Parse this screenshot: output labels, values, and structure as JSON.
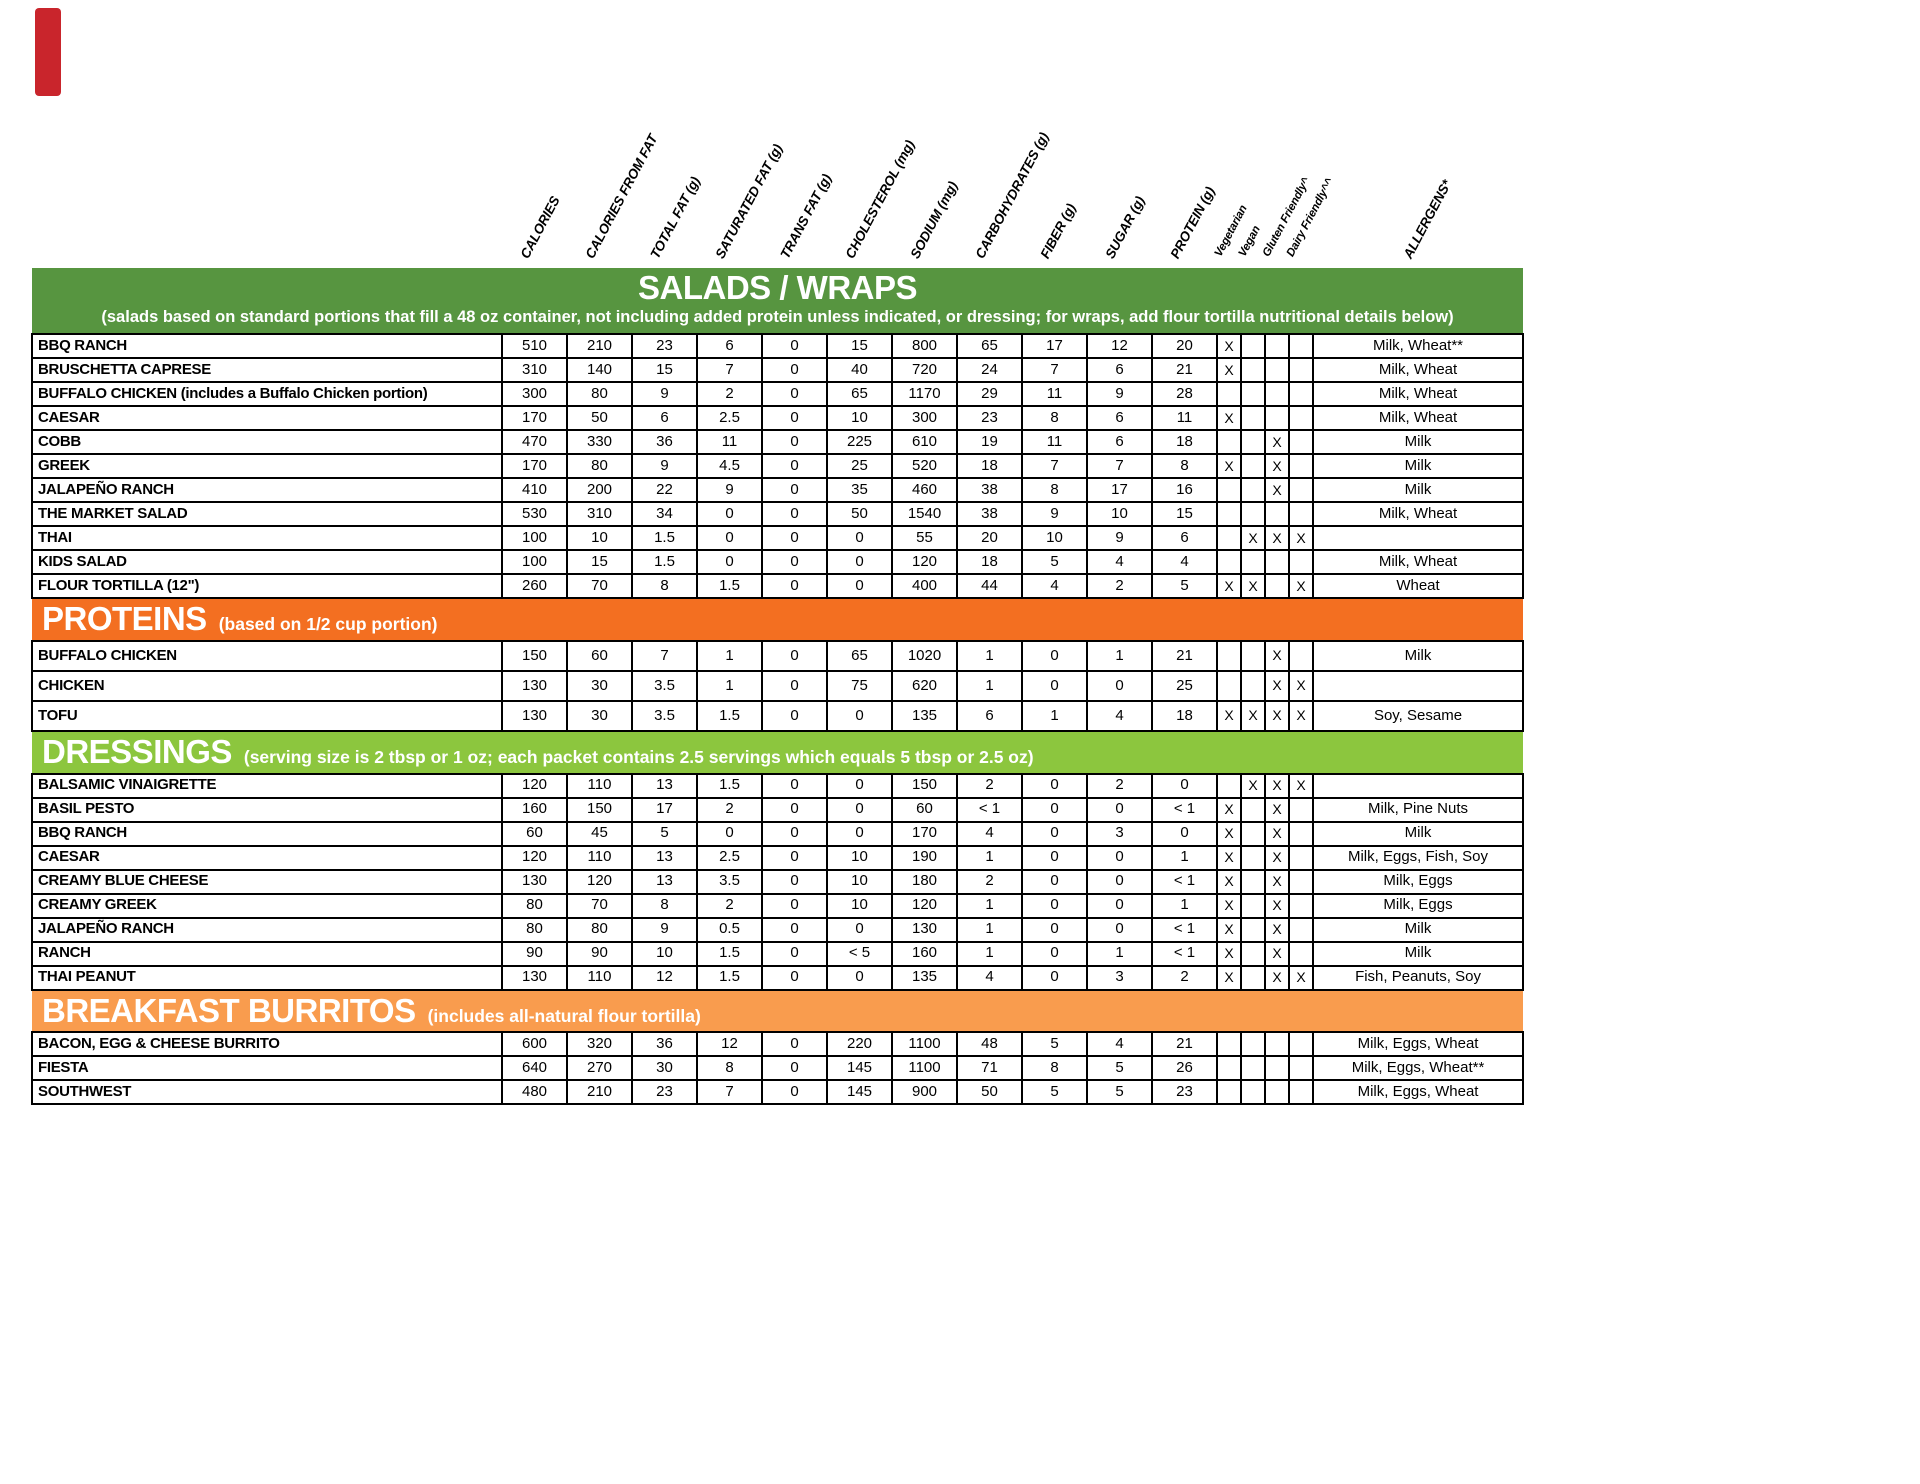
{
  "marker": {
    "color": "#c9252c"
  },
  "table": {
    "columns": [
      "CALORIES",
      "CALORIES FROM FAT",
      "TOTAL FAT (g)",
      "SATURATED FAT (g)",
      "TRANS FAT (g)",
      "CHOLESTEROL (mg)",
      "SODIUM (mg)",
      "CARBOHYDRATES (g)",
      "FIBER (g)",
      "SUGAR (g)",
      "PROTEIN (g)",
      "Vegetarian",
      "Vegan",
      "Gluten Friendly^",
      "Dairy Friendly^^",
      "ALLERGENS*"
    ],
    "sections": [
      {
        "title": "SALADS / WRAPS",
        "subtitle": "(salads based on standard portions that fill a 48 oz container, not including added protein unless indicated, or dressing; for wraps, add flour tortilla nutritional details below)",
        "color": "#579540",
        "layout": "stacked",
        "row_class": "",
        "rows": [
          {
            "name": "BBQ RANCH",
            "values": [
              "510",
              "210",
              "23",
              "6",
              "0",
              "15",
              "800",
              "65",
              "17",
              "12",
              "20"
            ],
            "flags": [
              "X",
              "",
              "",
              ""
            ],
            "allergens": "Milk, Wheat**"
          },
          {
            "name": "BRUSCHETTA CAPRESE",
            "values": [
              "310",
              "140",
              "15",
              "7",
              "0",
              "40",
              "720",
              "24",
              "7",
              "6",
              "21"
            ],
            "flags": [
              "X",
              "",
              "",
              ""
            ],
            "allergens": "Milk, Wheat"
          },
          {
            "name": "BUFFALO CHICKEN (includes a Buffalo Chicken portion)",
            "values": [
              "300",
              "80",
              "9",
              "2",
              "0",
              "65",
              "1170",
              "29",
              "11",
              "9",
              "28"
            ],
            "flags": [
              "",
              "",
              "",
              ""
            ],
            "allergens": "Milk, Wheat"
          },
          {
            "name": "CAESAR",
            "values": [
              "170",
              "50",
              "6",
              "2.5",
              "0",
              "10",
              "300",
              "23",
              "8",
              "6",
              "11"
            ],
            "flags": [
              "X",
              "",
              "",
              ""
            ],
            "allergens": "Milk, Wheat"
          },
          {
            "name": "COBB",
            "values": [
              "470",
              "330",
              "36",
              "11",
              "0",
              "225",
              "610",
              "19",
              "11",
              "6",
              "18"
            ],
            "flags": [
              "",
              "",
              "X",
              ""
            ],
            "allergens": "Milk"
          },
          {
            "name": "GREEK",
            "values": [
              "170",
              "80",
              "9",
              "4.5",
              "0",
              "25",
              "520",
              "18",
              "7",
              "7",
              "8"
            ],
            "flags": [
              "X",
              "",
              "X",
              ""
            ],
            "allergens": "Milk"
          },
          {
            "name": "JALAPEÑO RANCH",
            "values": [
              "410",
              "200",
              "22",
              "9",
              "0",
              "35",
              "460",
              "38",
              "8",
              "17",
              "16"
            ],
            "flags": [
              "",
              "",
              "X",
              ""
            ],
            "allergens": "Milk"
          },
          {
            "name": "THE MARKET SALAD",
            "values": [
              "530",
              "310",
              "34",
              "0",
              "0",
              "50",
              "1540",
              "38",
              "9",
              "10",
              "15"
            ],
            "flags": [
              "",
              "",
              "",
              ""
            ],
            "allergens": "Milk, Wheat"
          },
          {
            "name": "THAI",
            "values": [
              "100",
              "10",
              "1.5",
              "0",
              "0",
              "0",
              "55",
              "20",
              "10",
              "9",
              "6"
            ],
            "flags": [
              "",
              "X",
              "X",
              "X"
            ],
            "allergens": ""
          },
          {
            "name": "KIDS SALAD",
            "values": [
              "100",
              "15",
              "1.5",
              "0",
              "0",
              "0",
              "120",
              "18",
              "5",
              "4",
              "4"
            ],
            "flags": [
              "",
              "",
              "",
              ""
            ],
            "allergens": "Milk, Wheat"
          },
          {
            "name": "FLOUR TORTILLA (12\")",
            "values": [
              "260",
              "70",
              "8",
              "1.5",
              "0",
              "0",
              "400",
              "44",
              "4",
              "2",
              "5"
            ],
            "flags": [
              "X",
              "X",
              "",
              "X"
            ],
            "allergens": "Wheat"
          }
        ]
      },
      {
        "title": "PROTEINS",
        "subtitle": "(based on 1/2 cup portion)",
        "color": "#f36f21",
        "layout": "inline",
        "row_class": "tall",
        "rows": [
          {
            "name": "BUFFALO CHICKEN",
            "values": [
              "150",
              "60",
              "7",
              "1",
              "0",
              "65",
              "1020",
              "1",
              "0",
              "1",
              "21"
            ],
            "flags": [
              "",
              "",
              "X",
              ""
            ],
            "allergens": "Milk"
          },
          {
            "name": "CHICKEN",
            "values": [
              "130",
              "30",
              "3.5",
              "1",
              "0",
              "75",
              "620",
              "1",
              "0",
              "0",
              "25"
            ],
            "flags": [
              "",
              "",
              "X",
              "X"
            ],
            "allergens": ""
          },
          {
            "name": "TOFU",
            "values": [
              "130",
              "30",
              "3.5",
              "1.5",
              "0",
              "0",
              "135",
              "6",
              "1",
              "4",
              "18"
            ],
            "flags": [
              "X",
              "X",
              "X",
              "X"
            ],
            "allergens": "Soy, Sesame"
          }
        ]
      },
      {
        "title": "DRESSINGS",
        "subtitle": "(serving size is 2 tbsp or 1 oz; each packet contains 2.5 servings which equals 5 tbsp or 2.5 oz)",
        "color": "#8cc63e",
        "layout": "inline",
        "row_class": "",
        "rows": [
          {
            "name": "BALSAMIC VINAIGRETTE",
            "values": [
              "120",
              "110",
              "13",
              "1.5",
              "0",
              "0",
              "150",
              "2",
              "0",
              "2",
              "0"
            ],
            "flags": [
              "",
              "X",
              "X",
              "X"
            ],
            "allergens": ""
          },
          {
            "name": "BASIL PESTO",
            "values": [
              "160",
              "150",
              "17",
              "2",
              "0",
              "0",
              "60",
              "< 1",
              "0",
              "0",
              "< 1"
            ],
            "flags": [
              "X",
              "",
              "X",
              ""
            ],
            "allergens": "Milk, Pine Nuts"
          },
          {
            "name": "BBQ RANCH",
            "values": [
              "60",
              "45",
              "5",
              "0",
              "0",
              "0",
              "170",
              "4",
              "0",
              "3",
              "0"
            ],
            "flags": [
              "X",
              "",
              "X",
              ""
            ],
            "allergens": "Milk"
          },
          {
            "name": "CAESAR",
            "values": [
              "120",
              "110",
              "13",
              "2.5",
              "0",
              "10",
              "190",
              "1",
              "0",
              "0",
              "1"
            ],
            "flags": [
              "X",
              "",
              "X",
              ""
            ],
            "allergens": "Milk, Eggs, Fish, Soy"
          },
          {
            "name": "CREAMY BLUE CHEESE",
            "values": [
              "130",
              "120",
              "13",
              "3.5",
              "0",
              "10",
              "180",
              "2",
              "0",
              "0",
              "< 1"
            ],
            "flags": [
              "X",
              "",
              "X",
              ""
            ],
            "allergens": "Milk, Eggs"
          },
          {
            "name": "CREAMY GREEK",
            "values": [
              "80",
              "70",
              "8",
              "2",
              "0",
              "10",
              "120",
              "1",
              "0",
              "0",
              "1"
            ],
            "flags": [
              "X",
              "",
              "X",
              ""
            ],
            "allergens": "Milk, Eggs"
          },
          {
            "name": "JALAPEÑO RANCH",
            "values": [
              "80",
              "80",
              "9",
              "0.5",
              "0",
              "0",
              "130",
              "1",
              "0",
              "0",
              "< 1"
            ],
            "flags": [
              "X",
              "",
              "X",
              ""
            ],
            "allergens": "Milk"
          },
          {
            "name": "RANCH",
            "values": [
              "90",
              "90",
              "10",
              "1.5",
              "0",
              "< 5",
              "160",
              "1",
              "0",
              "1",
              "< 1"
            ],
            "flags": [
              "X",
              "",
              "X",
              ""
            ],
            "allergens": "Milk"
          },
          {
            "name": "THAI PEANUT",
            "values": [
              "130",
              "110",
              "12",
              "1.5",
              "0",
              "0",
              "135",
              "4",
              "0",
              "3",
              "2"
            ],
            "flags": [
              "X",
              "",
              "X",
              "X"
            ],
            "allergens": "Fish, Peanuts, Soy"
          }
        ]
      },
      {
        "title": "BREAKFAST BURRITOS",
        "subtitle": "(includes all-natural flour tortilla)",
        "color": "#f99c4e",
        "layout": "inline",
        "row_class": "",
        "rows": [
          {
            "name": "BACON, EGG & CHEESE BURRITO",
            "values": [
              "600",
              "320",
              "36",
              "12",
              "0",
              "220",
              "1100",
              "48",
              "5",
              "4",
              "21"
            ],
            "flags": [
              "",
              "",
              "",
              ""
            ],
            "allergens": "Milk, Eggs, Wheat"
          },
          {
            "name": "FIESTA",
            "values": [
              "640",
              "270",
              "30",
              "8",
              "0",
              "145",
              "1100",
              "71",
              "8",
              "5",
              "26"
            ],
            "flags": [
              "",
              "",
              "",
              ""
            ],
            "allergens": "Milk, Eggs, Wheat**"
          },
          {
            "name": "SOUTHWEST",
            "values": [
              "480",
              "210",
              "23",
              "7",
              "0",
              "145",
              "900",
              "50",
              "5",
              "5",
              "23"
            ],
            "flags": [
              "",
              "",
              "",
              ""
            ],
            "allergens": "Milk, Eggs, Wheat"
          }
        ]
      }
    ]
  }
}
